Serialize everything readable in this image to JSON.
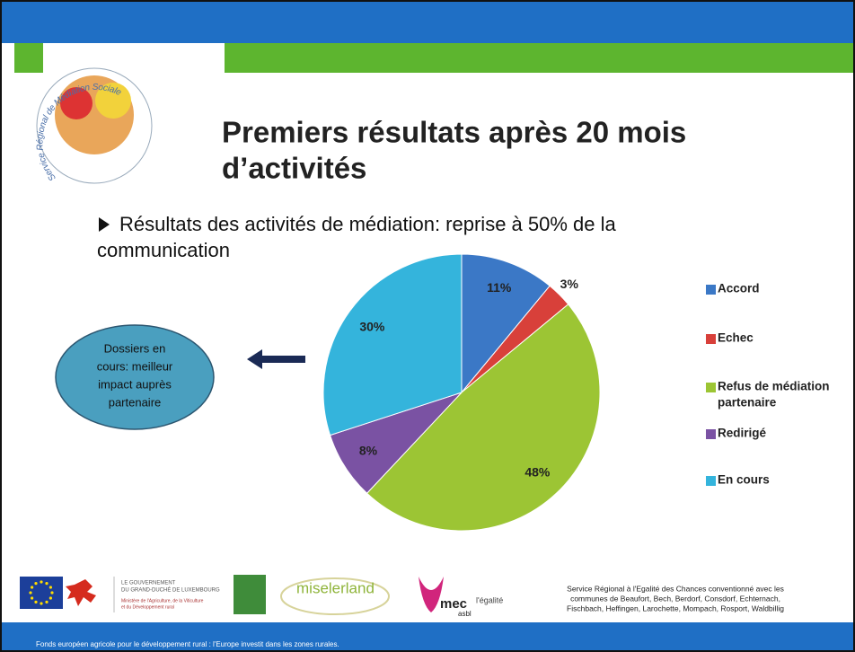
{
  "logo_text": "Service Régional de Médiation Sociale",
  "title": [
    "Premiers résultats après 20 mois",
    "d’activités"
  ],
  "bullet": [
    "Résultats des activités de médiation: reprise à 50% de la",
    "communication"
  ],
  "callout": [
    "Dossiers en",
    "cours: meilleur",
    "impact auprès",
    "partenaire"
  ],
  "chart_data": {
    "type": "pie",
    "categories": [
      "Accord",
      "Echec",
      "Refus de médiation partenaire",
      "Redirigé",
      "En cours"
    ],
    "legend_lines": [
      [
        "Accord"
      ],
      [
        "Echec"
      ],
      [
        "Refus de médiation",
        "partenaire"
      ],
      [
        "Redirigé"
      ],
      [
        "En cours"
      ]
    ],
    "values": [
      11,
      3,
      48,
      8,
      30
    ],
    "value_labels": [
      "11%",
      "3%",
      "48%",
      "8%",
      "30%"
    ],
    "colors": [
      "#3b78c6",
      "#d8403a",
      "#9cc534",
      "#7a52a3",
      "#34b4dc"
    ],
    "legend": "right"
  },
  "footer": {
    "gov": [
      "LE GOUVERNEMENT",
      "DU GRAND-DUCHÉ DE LUXEMBOURG"
    ],
    "ministry": [
      "Ministère de l'Agriculture, de la Viticulture",
      "et du Développement rural"
    ],
    "miselerland": "miselerland",
    "mec": "mec",
    "asbl": "asbl",
    "egalite": "l'égalité",
    "notice": [
      "Service Régional à l'Egalité des Chances conventionné avec les",
      "communes de Beaufort, Bech, Berdorf, Consdorf, Echternach,",
      "Fischbach, Heffingen, Larochette, Mompach, Rosport, Waldbillig"
    ],
    "bottom": "Fonds européen agricole pour le développement rural : l'Europe investit dans les zones rurales."
  }
}
